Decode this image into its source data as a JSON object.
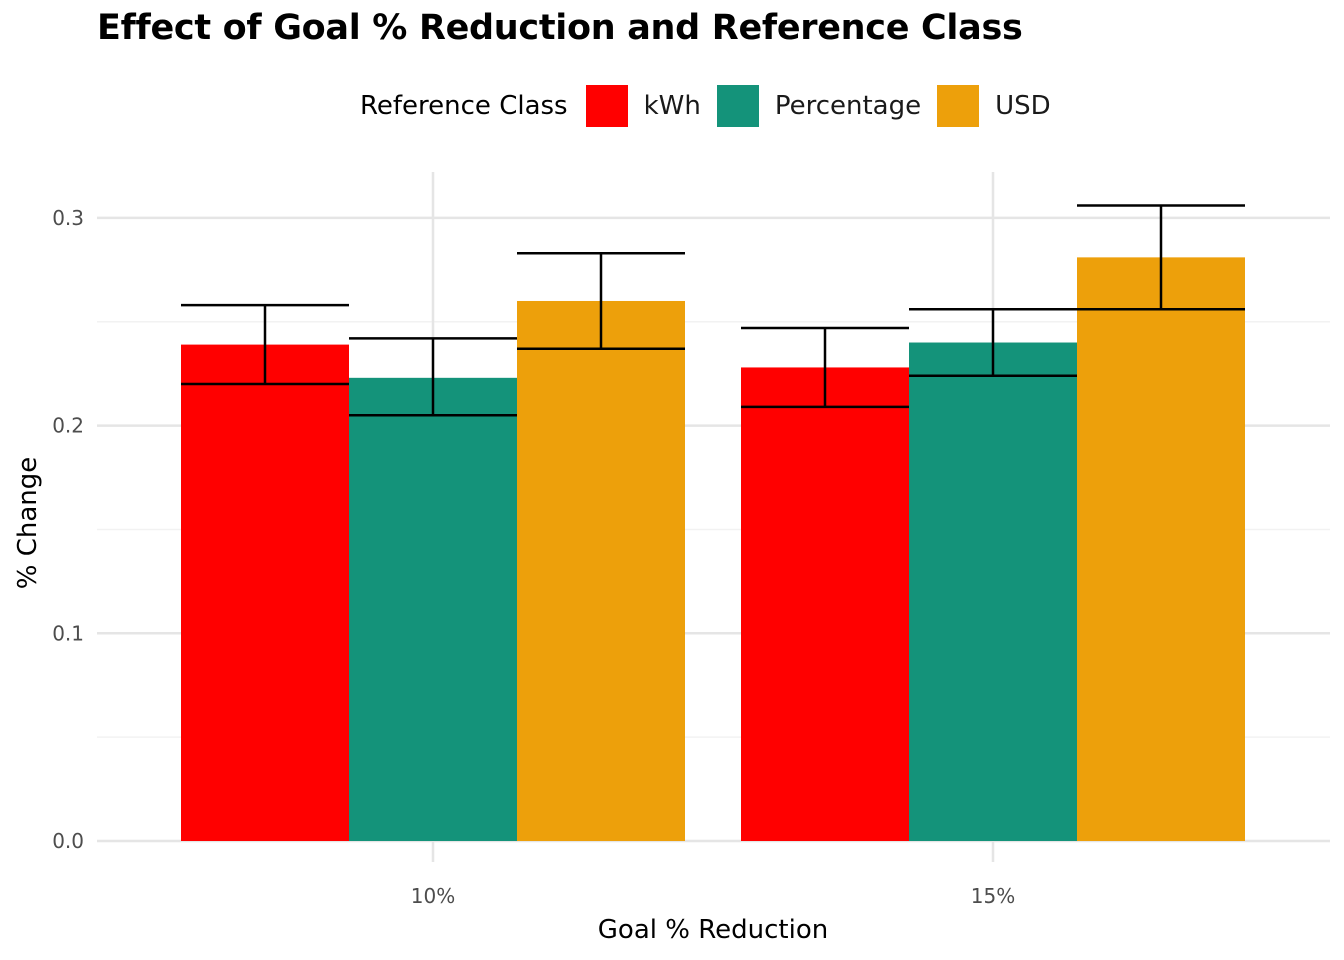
{
  "chart_data": {
    "type": "bar",
    "title": "Effect of Goal % Reduction and Reference Class",
    "xlabel": "Goal % Reduction",
    "ylabel": "% Change",
    "categories": [
      "10%",
      "15%"
    ],
    "legend_title": "Reference Class",
    "legend_position": "top",
    "grid": true,
    "ylim": [
      0,
      0.32
    ],
    "yticks": [
      0.0,
      0.1,
      0.2,
      0.3
    ],
    "ytick_labels": [
      "0.0",
      "0.1",
      "0.2",
      "0.3"
    ],
    "series": [
      {
        "name": "kWh",
        "color": "#FF0000",
        "values": [
          0.239,
          0.228
        ],
        "error_low": [
          0.22,
          0.209
        ],
        "error_high": [
          0.258,
          0.247
        ]
      },
      {
        "name": "Percentage",
        "color": "#14937A",
        "values": [
          0.223,
          0.24
        ],
        "error_low": [
          0.205,
          0.224
        ],
        "error_high": [
          0.242,
          0.256
        ]
      },
      {
        "name": "USD",
        "color": "#EDA00B",
        "values": [
          0.26,
          0.281
        ],
        "error_low": [
          0.237,
          0.256
        ],
        "error_high": [
          0.283,
          0.306
        ]
      }
    ]
  }
}
